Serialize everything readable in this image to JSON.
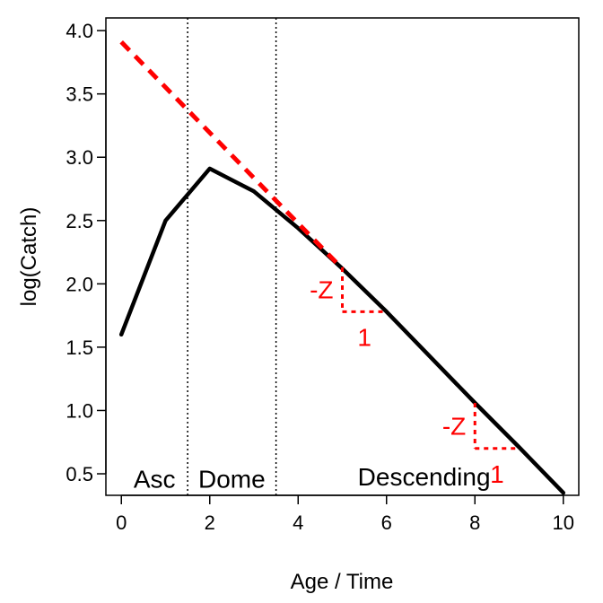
{
  "chart_data": {
    "type": "line",
    "title": "",
    "xlabel": "Age / Time",
    "ylabel": "log(Catch)",
    "xlim": [
      -0.35,
      10.35
    ],
    "ylim": [
      0.33,
      4.1
    ],
    "xticks": [
      0,
      2,
      4,
      6,
      8,
      10
    ],
    "xtick_labels": [
      "0",
      "2",
      "4",
      "6",
      "8",
      "10"
    ],
    "yticks": [
      0.5,
      1.0,
      1.5,
      2.0,
      2.5,
      3.0,
      3.5,
      4.0
    ],
    "ytick_labels": [
      "0.5",
      "1.0",
      "1.5",
      "2.0",
      "2.5",
      "3.0",
      "3.5",
      "4.0"
    ],
    "grid": false,
    "series": [
      {
        "style": "solid",
        "color": "#000000",
        "x": [
          0,
          1,
          2,
          3,
          4,
          5,
          6,
          7,
          8,
          9,
          10
        ],
        "y": [
          1.6,
          2.5,
          2.91,
          2.73,
          2.44,
          2.12,
          1.78,
          1.42,
          1.06,
          0.71,
          0.35
        ]
      },
      {
        "style": "dashed",
        "color": "#ff0000",
        "x": [
          0,
          5
        ],
        "y": [
          3.91,
          2.12
        ]
      }
    ],
    "vlines": [
      {
        "x": 1.5,
        "style": "dotted",
        "color": "#000000"
      },
      {
        "x": 3.5,
        "style": "dotted",
        "color": "#000000"
      }
    ],
    "region_labels": [
      {
        "text": "Asc",
        "x": 0.75,
        "y": 0.46
      },
      {
        "text": "Dome",
        "x": 2.5,
        "y": 0.46
      },
      {
        "text": "Descending",
        "x": 6.85,
        "y": 0.48
      }
    ],
    "slope_annotations": [
      {
        "x0": 5,
        "y0": 2.13,
        "x1": 6,
        "y1": 1.78,
        "rise_label": "-Z",
        "run_label": "1",
        "color": "#ff0000"
      },
      {
        "x0": 8,
        "y0": 1.06,
        "x1": 9,
        "y1": 0.7,
        "rise_label": "-Z",
        "run_label": "1",
        "color": "#ff0000"
      }
    ]
  }
}
